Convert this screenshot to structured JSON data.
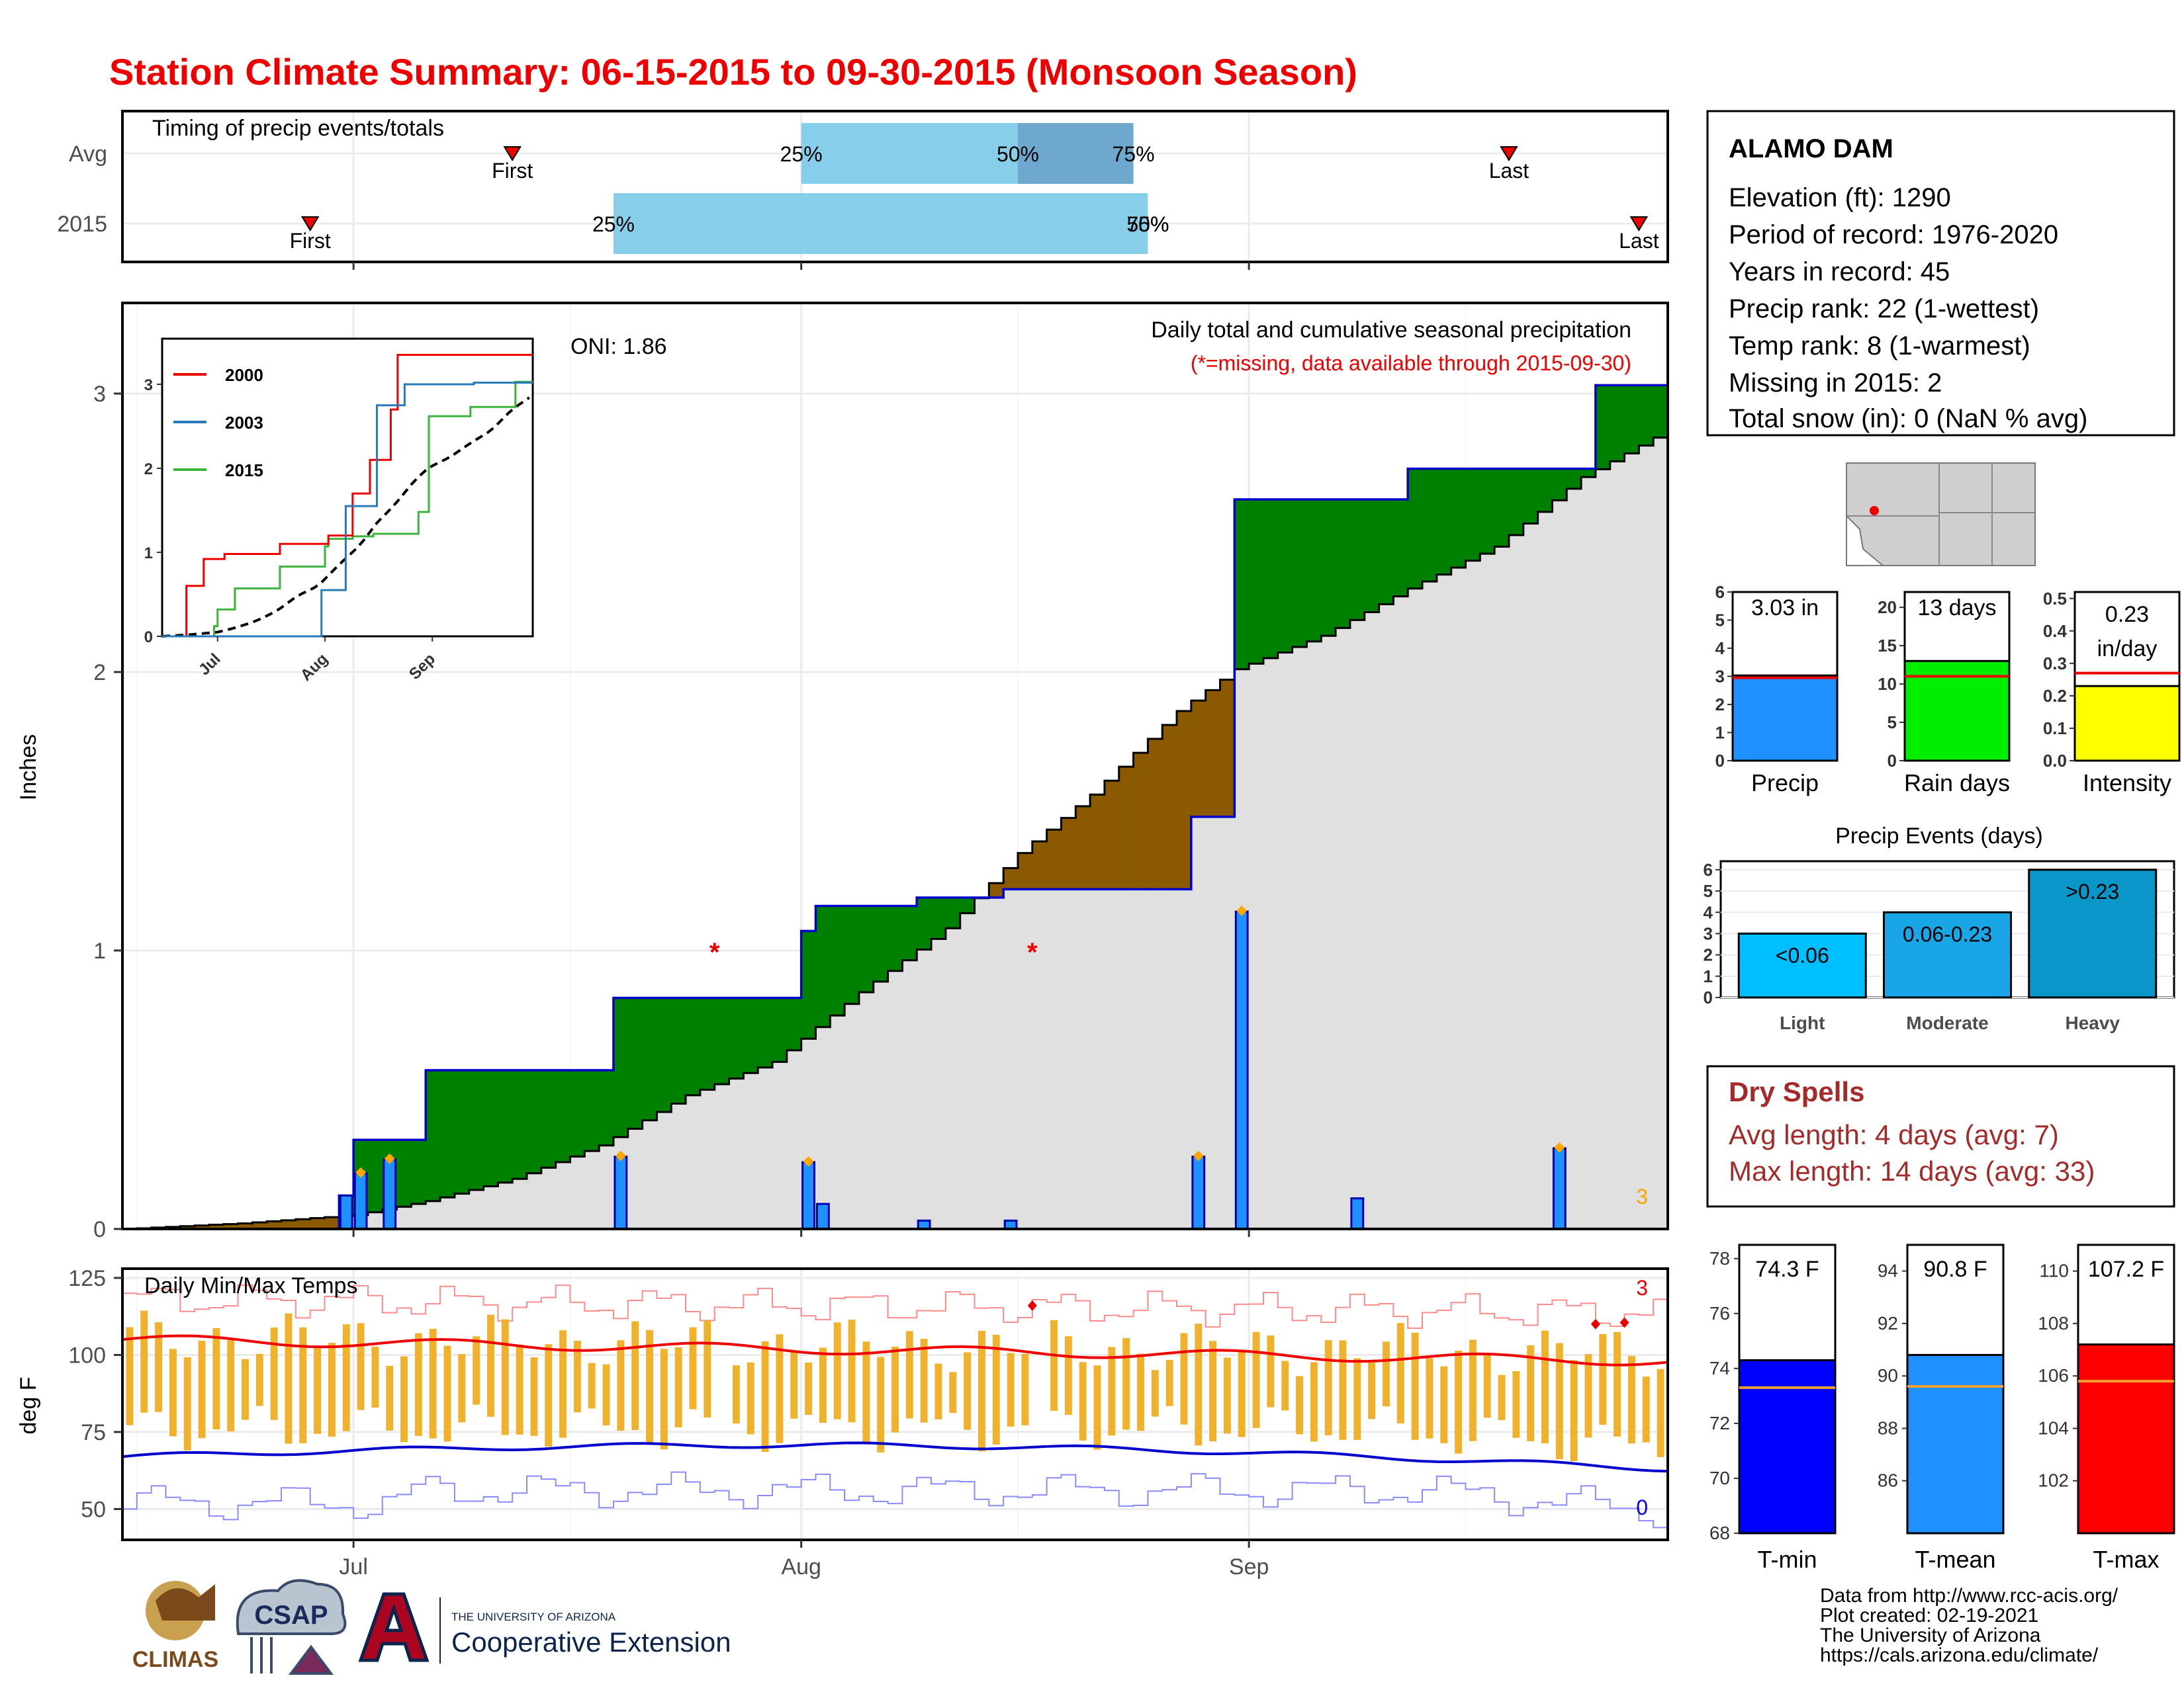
{
  "title": "Station Climate Summary: 06-15-2015 to 09-30-2015 (Monsoon Season)",
  "timing_panel": {
    "heading": "Timing of precip events/totals",
    "rows": [
      {
        "label": "Avg",
        "first_label": "First",
        "last_label": "Last",
        "p25_label": "25%",
        "p50_label": "50%",
        "p75_label": "75%",
        "first": "2015-07-12",
        "last": "2015-09-19",
        "p25": "2015-08-01",
        "p50": "2015-08-16",
        "p75": "2015-08-24"
      },
      {
        "label": "2015",
        "first_label": "First",
        "last_label": "Last",
        "p25_label": "25%",
        "p50_label": "50%",
        "p75_label": "75%",
        "first": "2015-06-28",
        "last": "2015-09-28",
        "p25": "2015-07-19",
        "p50": "2015-08-25",
        "p75": "2015-08-25"
      }
    ]
  },
  "precip_panel": {
    "ylabel": "Inches",
    "oni": "ONI: 1.86",
    "heading": "Daily total and cumulative seasonal precipitation",
    "subheading": "(*=missing, data available through 2015-09-30)",
    "count_label": "3"
  },
  "inset": {
    "legend": [
      {
        "name": "2000",
        "color": "#ee0000"
      },
      {
        "name": "2003",
        "color": "#2a7ab8"
      },
      {
        "name": "2015",
        "color": "#3cb43c"
      }
    ],
    "x_ticks": [
      "Jul",
      "Aug",
      "Sep"
    ],
    "y_ticks": [
      "0",
      "1",
      "2",
      "3"
    ]
  },
  "temp_panel": {
    "ylabel": "deg F",
    "heading": "Daily Min/Max Temps",
    "max_count_label": "3",
    "min_count_label": "0"
  },
  "x_axis": {
    "ticks": [
      "Jul",
      "Aug",
      "Sep"
    ]
  },
  "station": {
    "name": "ALAMO DAM",
    "lines": [
      "Elevation (ft): 1290",
      "Period of record: 1976-2020",
      "Years in record: 45",
      "Precip rank: 22 (1-wettest)",
      "Temp rank: 8 (1-warmest)",
      "Missing in 2015: 2",
      "Total snow (in): 0 (NaN % avg)"
    ]
  },
  "summary_bars": [
    {
      "label": "Precip",
      "value_text": "3.03 in",
      "value": 3.03,
      "avg": 2.95,
      "ymax": 6,
      "ticks": [
        "0",
        "1",
        "2",
        "3",
        "4",
        "5",
        "6"
      ],
      "tick_values": [
        0,
        1,
        2,
        3,
        4,
        5,
        6
      ],
      "color": "#1e90ff"
    },
    {
      "label": "Rain days",
      "value_text": "13 days",
      "value": 13,
      "avg": 11,
      "ymax": 22,
      "ticks": [
        "0",
        "5",
        "10",
        "15",
        "20"
      ],
      "tick_values": [
        0,
        5,
        10,
        15,
        20
      ],
      "color": "#00ee00"
    },
    {
      "label": "Intensity",
      "value_text_1": "0.23",
      "value_text_2": "in/day",
      "value": 0.23,
      "avg": 0.27,
      "ymax": 0.52,
      "ticks": [
        "0.0",
        "0.1",
        "0.2",
        "0.3",
        "0.4",
        "0.5"
      ],
      "tick_values": [
        0,
        0.1,
        0.2,
        0.3,
        0.4,
        0.5
      ],
      "color": "#ffff00"
    }
  ],
  "precip_events": {
    "title": "Precip Events (days)",
    "y_ticks": [
      "0",
      "1",
      "2",
      "3",
      "4",
      "5",
      "6"
    ],
    "bars": [
      {
        "category": "Light",
        "range": "<0.06",
        "value": 3,
        "color": "#00bfff"
      },
      {
        "category": "Moderate",
        "range": "0.06-0.23",
        "value": 4,
        "color": "#1aa6e6"
      },
      {
        "category": "Heavy",
        "range": ">0.23",
        "value": 6,
        "color": "#0a96c8"
      }
    ]
  },
  "dry_spells": {
    "title": "Dry Spells",
    "avg_line": "Avg length: 4 days (avg: 7)",
    "max_line": "Max length: 14 days (avg: 33)"
  },
  "temp_bars": [
    {
      "label": "T-min",
      "value_text": "74.3 F",
      "value": 74.3,
      "avg": 73.3,
      "ymin": 68,
      "ymax": 78.5,
      "ticks": [
        "68",
        "70",
        "72",
        "74",
        "76",
        "78"
      ],
      "tick_values": [
        68,
        70,
        72,
        74,
        76,
        78
      ],
      "color": "#0000ff"
    },
    {
      "label": "T-mean",
      "value_text": "90.8 F",
      "value": 90.8,
      "avg": 89.6,
      "ymin": 84,
      "ymax": 95,
      "ticks": [
        "86",
        "88",
        "90",
        "92",
        "94"
      ],
      "tick_values": [
        86,
        88,
        90,
        92,
        94
      ],
      "color": "#1e90ff"
    },
    {
      "label": "T-max",
      "value_text": "107.2 F",
      "value": 107.2,
      "avg": 105.8,
      "ymin": 100,
      "ymax": 111,
      "ticks": [
        "102",
        "104",
        "106",
        "108",
        "110"
      ],
      "tick_values": [
        102,
        104,
        106,
        108,
        110
      ],
      "color": "#ff0000"
    }
  ],
  "credits": [
    "Data from http://www.rcc-acis.org/",
    "Plot created: 02-19-2021",
    "The University of Arizona",
    "https://cals.arizona.edu/climate/"
  ],
  "logos": {
    "climas": "CLIMAS",
    "csap": "CSAP",
    "ua_line1": "THE UNIVERSITY OF ARIZONA",
    "ua_line2": "Cooperative Extension"
  },
  "chart_data": {
    "type": "area",
    "x_start": "2015-06-15",
    "x_end": "2015-09-30",
    "ylim": [
      0,
      3.3
    ],
    "y_ticks": [
      0,
      1,
      2,
      3
    ],
    "daily_precip": [
      {
        "date": "2015-06-30",
        "value": 0.12
      },
      {
        "date": "2015-07-01",
        "value": 0.2
      },
      {
        "date": "2015-07-03",
        "value": 0.25
      },
      {
        "date": "2015-07-19",
        "value": 0.26
      },
      {
        "date": "2015-08-01",
        "value": 0.24
      },
      {
        "date": "2015-08-02",
        "value": 0.09
      },
      {
        "date": "2015-08-09",
        "value": 0.03
      },
      {
        "date": "2015-08-15",
        "value": 0.03
      },
      {
        "date": "2015-08-28",
        "value": 0.26
      },
      {
        "date": "2015-08-31",
        "value": 1.14
      },
      {
        "date": "2015-09-08",
        "value": 0.11
      },
      {
        "date": "2015-09-22",
        "value": 0.29
      }
    ],
    "cumulative_2015": [
      [
        "2015-06-15",
        0
      ],
      [
        "2015-06-30",
        0.12
      ],
      [
        "2015-07-01",
        0.32
      ],
      [
        "2015-07-06",
        0.57
      ],
      [
        "2015-07-19",
        0.83
      ],
      [
        "2015-08-01",
        1.07
      ],
      [
        "2015-08-02",
        1.16
      ],
      [
        "2015-08-09",
        1.19
      ],
      [
        "2015-08-15",
        1.22
      ],
      [
        "2015-08-28",
        1.48
      ],
      [
        "2015-08-31",
        2.62
      ],
      [
        "2015-09-12",
        2.73
      ],
      [
        "2015-09-25",
        3.03
      ],
      [
        "2015-09-30",
        3.03
      ]
    ],
    "cumulative_avg": [
      [
        "2015-06-15",
        0
      ],
      [
        "2015-06-23",
        0.02
      ],
      [
        "2015-07-01",
        0.05
      ],
      [
        "2015-07-06",
        0.1
      ],
      [
        "2015-07-12",
        0.18
      ],
      [
        "2015-07-18",
        0.3
      ],
      [
        "2015-07-24",
        0.48
      ],
      [
        "2015-07-30",
        0.6
      ],
      [
        "2015-08-05",
        0.85
      ],
      [
        "2015-08-11",
        1.08
      ],
      [
        "2015-08-16",
        1.35
      ],
      [
        "2015-08-21",
        1.56
      ],
      [
        "2015-08-27",
        1.86
      ],
      [
        "2015-08-31",
        2.01
      ],
      [
        "2015-09-06",
        2.13
      ],
      [
        "2015-09-12",
        2.3
      ],
      [
        "2015-09-18",
        2.45
      ],
      [
        "2015-09-24",
        2.7
      ],
      [
        "2015-09-30",
        2.87
      ]
    ],
    "missing_days": [
      "2015-07-26",
      "2015-08-17"
    ],
    "temp_ylim": [
      40,
      128
    ],
    "temp_y_ticks": [
      50,
      75,
      100,
      125
    ],
    "temp_avg_max_start": 105,
    "temp_avg_max_end": 98,
    "temp_avg_min_start": 67,
    "temp_avg_min_end": 63
  }
}
